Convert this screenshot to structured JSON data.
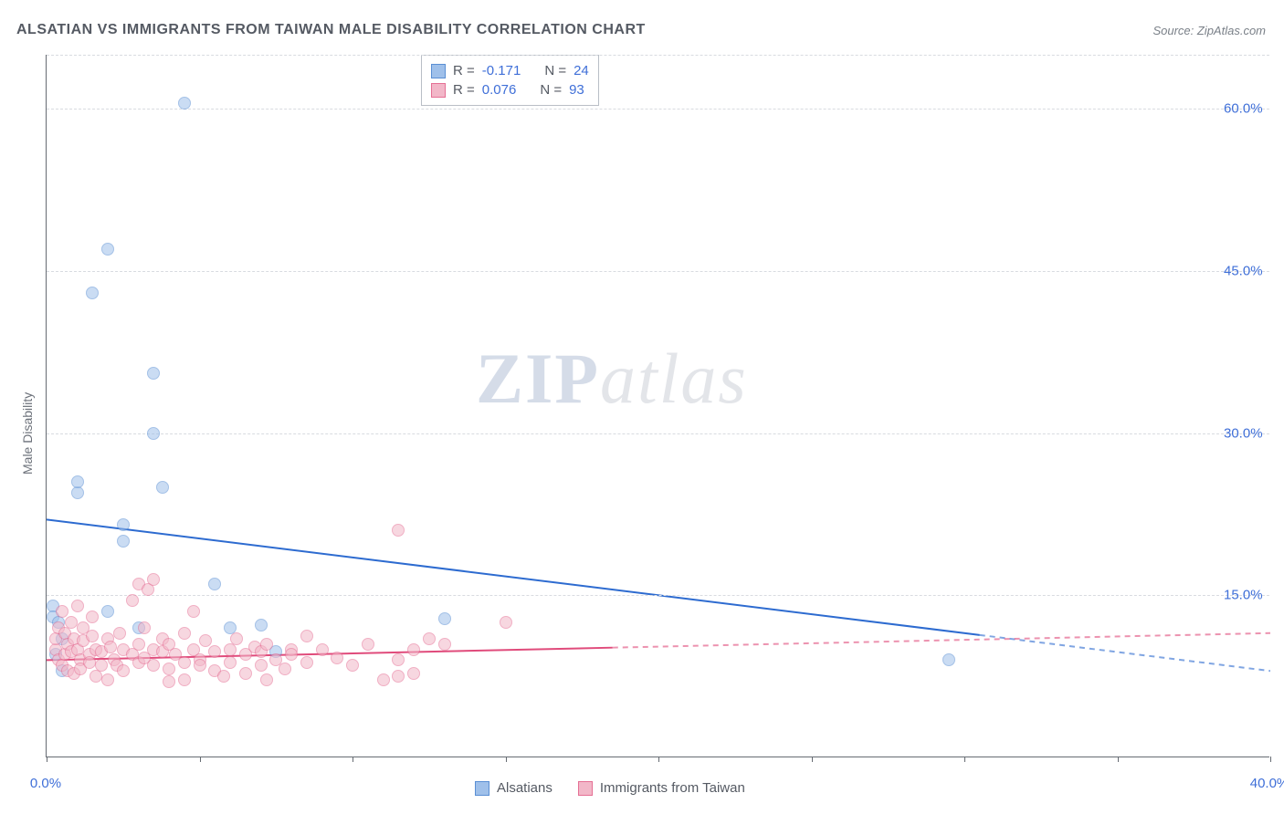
{
  "title": "ALSATIAN VS IMMIGRANTS FROM TAIWAN MALE DISABILITY CORRELATION CHART",
  "source": "Source: ZipAtlas.com",
  "ylabel": "Male Disability",
  "watermark": {
    "part1": "ZIP",
    "part2": "atlas"
  },
  "chart": {
    "type": "scatter",
    "background_color": "#ffffff",
    "grid_color": "#d8dbe0",
    "axis_color": "#666b72",
    "label_color": "#3f6fd8",
    "title_color": "#555a63",
    "xlim": [
      0,
      40
    ],
    "ylim": [
      0,
      65
    ],
    "x_ticks": [
      0,
      5,
      10,
      15,
      20,
      25,
      30,
      35,
      40
    ],
    "x_tick_labels": {
      "0": "0.0%",
      "40": "40.0%"
    },
    "y_gridlines": [
      15,
      30,
      45,
      60,
      65
    ],
    "y_tick_labels": {
      "15": "15.0%",
      "30": "30.0%",
      "45": "45.0%",
      "60": "60.0%"
    },
    "marker_radius": 7,
    "marker_opacity": 0.55,
    "line_width": 2
  },
  "series": [
    {
      "name": "Alsatians",
      "fill": "#9fc0ea",
      "stroke": "#5a8fd4",
      "R": "-0.171",
      "N": "24",
      "trend": {
        "x1": 0,
        "y1": 22.0,
        "x2": 40,
        "y2": 8.0,
        "solid_until_x": 30.5,
        "color": "#2d6bd0"
      },
      "points": [
        [
          0.2,
          14.0
        ],
        [
          0.2,
          13.0
        ],
        [
          0.3,
          9.5
        ],
        [
          0.4,
          12.5
        ],
        [
          0.5,
          11.0
        ],
        [
          0.5,
          8.0
        ],
        [
          1.0,
          24.5
        ],
        [
          1.0,
          25.5
        ],
        [
          1.5,
          43.0
        ],
        [
          2.0,
          13.5
        ],
        [
          2.0,
          47.0
        ],
        [
          2.5,
          20.0
        ],
        [
          2.5,
          21.5
        ],
        [
          3.0,
          12.0
        ],
        [
          3.5,
          35.5
        ],
        [
          3.5,
          30.0
        ],
        [
          3.8,
          25.0
        ],
        [
          4.5,
          60.5
        ],
        [
          5.5,
          16.0
        ],
        [
          6.0,
          12.0
        ],
        [
          7.0,
          12.2
        ],
        [
          13.0,
          12.8
        ],
        [
          7.5,
          9.8
        ],
        [
          29.5,
          9.0
        ]
      ]
    },
    {
      "name": "Immigrants from Taiwan",
      "fill": "#f2b7c8",
      "stroke": "#e56f94",
      "R": "0.076",
      "N": "93",
      "trend": {
        "x1": 0,
        "y1": 9.0,
        "x2": 40,
        "y2": 11.5,
        "solid_until_x": 18.5,
        "color": "#e04b7b"
      },
      "points": [
        [
          0.3,
          10.0
        ],
        [
          0.3,
          11.0
        ],
        [
          0.4,
          9.0
        ],
        [
          0.4,
          12.0
        ],
        [
          0.5,
          8.5
        ],
        [
          0.5,
          13.5
        ],
        [
          0.6,
          9.5
        ],
        [
          0.6,
          11.5
        ],
        [
          0.7,
          10.5
        ],
        [
          0.7,
          8.0
        ],
        [
          0.8,
          9.8
        ],
        [
          0.8,
          12.5
        ],
        [
          0.9,
          7.8
        ],
        [
          0.9,
          11.0
        ],
        [
          1.0,
          10.0
        ],
        [
          1.0,
          14.0
        ],
        [
          1.1,
          9.0
        ],
        [
          1.1,
          8.2
        ],
        [
          1.2,
          10.8
        ],
        [
          1.2,
          12.0
        ],
        [
          1.4,
          9.5
        ],
        [
          1.4,
          8.8
        ],
        [
          1.5,
          11.2
        ],
        [
          1.5,
          13.0
        ],
        [
          1.6,
          7.5
        ],
        [
          1.6,
          10.0
        ],
        [
          1.8,
          9.8
        ],
        [
          1.8,
          8.5
        ],
        [
          2.0,
          11.0
        ],
        [
          2.0,
          7.2
        ],
        [
          2.1,
          10.2
        ],
        [
          2.2,
          9.0
        ],
        [
          2.3,
          8.5
        ],
        [
          2.4,
          11.5
        ],
        [
          2.5,
          10.0
        ],
        [
          2.5,
          8.0
        ],
        [
          2.8,
          9.5
        ],
        [
          2.8,
          14.5
        ],
        [
          3.0,
          10.5
        ],
        [
          3.0,
          8.8
        ],
        [
          3.0,
          16.0
        ],
        [
          3.2,
          9.2
        ],
        [
          3.2,
          12.0
        ],
        [
          3.3,
          15.5
        ],
        [
          3.5,
          10.0
        ],
        [
          3.5,
          8.5
        ],
        [
          3.5,
          16.5
        ],
        [
          3.8,
          9.8
        ],
        [
          3.8,
          11.0
        ],
        [
          4.0,
          8.2
        ],
        [
          4.0,
          10.5
        ],
        [
          4.0,
          7.0
        ],
        [
          4.2,
          9.5
        ],
        [
          4.5,
          8.8
        ],
        [
          4.5,
          11.5
        ],
        [
          4.5,
          7.2
        ],
        [
          4.8,
          10.0
        ],
        [
          4.8,
          13.5
        ],
        [
          5.0,
          9.0
        ],
        [
          5.0,
          8.5
        ],
        [
          5.2,
          10.8
        ],
        [
          5.5,
          8.0
        ],
        [
          5.5,
          9.8
        ],
        [
          5.8,
          7.5
        ],
        [
          6.0,
          10.0
        ],
        [
          6.0,
          8.8
        ],
        [
          6.2,
          11.0
        ],
        [
          6.5,
          9.5
        ],
        [
          6.5,
          7.8
        ],
        [
          6.8,
          10.2
        ],
        [
          7.0,
          8.5
        ],
        [
          7.0,
          9.8
        ],
        [
          7.2,
          10.5
        ],
        [
          7.2,
          7.2
        ],
        [
          7.5,
          9.0
        ],
        [
          7.8,
          8.2
        ],
        [
          8.0,
          10.0
        ],
        [
          8.0,
          9.5
        ],
        [
          8.5,
          8.8
        ],
        [
          8.5,
          11.2
        ],
        [
          9.0,
          10.0
        ],
        [
          9.5,
          9.2
        ],
        [
          10.0,
          8.5
        ],
        [
          10.5,
          10.5
        ],
        [
          11.0,
          7.2
        ],
        [
          11.5,
          21.0
        ],
        [
          11.5,
          9.0
        ],
        [
          11.5,
          7.5
        ],
        [
          12.0,
          7.8
        ],
        [
          12.0,
          10.0
        ],
        [
          15.0,
          12.5
        ],
        [
          12.5,
          11.0
        ],
        [
          13.0,
          10.5
        ]
      ]
    }
  ],
  "legend_top": {
    "r_label": "R =",
    "n_label": "N ="
  },
  "bottom_legend": [
    {
      "label": "Alsatians",
      "fill": "#9fc0ea",
      "stroke": "#5a8fd4"
    },
    {
      "label": "Immigrants from Taiwan",
      "fill": "#f2b7c8",
      "stroke": "#e56f94"
    }
  ]
}
